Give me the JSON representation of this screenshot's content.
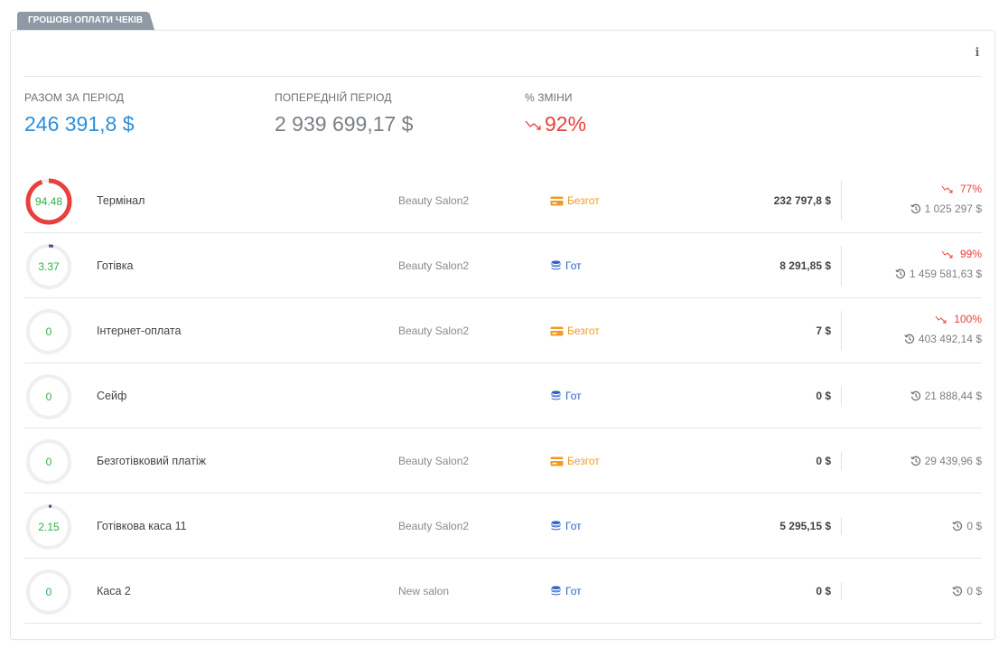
{
  "widget": {
    "tab_title": "ГРОШОВІ ОПЛАТИ ЧЕКІВ",
    "info_icon": "info-icon"
  },
  "summary": {
    "total_label": "РАЗОМ ЗА ПЕРІОД",
    "total_value": "246 391,8 $",
    "prev_label": "ПОПЕРЕДНІЙ ПЕРІОД",
    "prev_value": "2 939 699,17 $",
    "change_label": "% ЗМІНИ",
    "change_value": "92%",
    "change_direction": "down"
  },
  "colors": {
    "accent_blue": "#2e8fd9",
    "negative_red": "#e8403c",
    "donut_value_green": "#2fb04c",
    "cashless_orange": "#f19a24",
    "cash_blue": "#2f63c7",
    "donut_track": "#efefef",
    "donut_fill_red": "#e8403c",
    "donut_fill_navy": "#3f4f8f"
  },
  "rows": [
    {
      "percent": 94.48,
      "percent_label": "94.48",
      "name": "Термінал",
      "salon": "Beauty Salon2",
      "type": "cashless",
      "type_label": "Безгот",
      "amount": "232 797,8 $",
      "change": "77%",
      "prev": "1 025 297 $"
    },
    {
      "percent": 3.37,
      "percent_label": "3.37",
      "name": "Готівка",
      "salon": "Beauty Salon2",
      "type": "cash",
      "type_label": "Гот",
      "amount": "8 291,85 $",
      "change": "99%",
      "prev": "1 459 581,63 $"
    },
    {
      "percent": 0,
      "percent_label": "0",
      "name": "Інтернет-оплата",
      "salon": "Beauty Salon2",
      "type": "cashless",
      "type_label": "Безгот",
      "amount": "7 $",
      "change": "100%",
      "prev": "403 492,14 $"
    },
    {
      "percent": 0,
      "percent_label": "0",
      "name": "Сейф",
      "salon": "",
      "type": "cash",
      "type_label": "Гот",
      "amount": "0 $",
      "change": "",
      "prev": "21 888,44 $"
    },
    {
      "percent": 0,
      "percent_label": "0",
      "name": "Безготівковий платіж",
      "salon": "Beauty Salon2",
      "type": "cashless",
      "type_label": "Безгот",
      "amount": "0 $",
      "change": "",
      "prev": "29 439,96 $"
    },
    {
      "percent": 2.15,
      "percent_label": "2.15",
      "name": "Готівкова каса 11",
      "salon": "Beauty Salon2",
      "type": "cash",
      "type_label": "Гот",
      "amount": "5 295,15 $",
      "change": "",
      "prev": "0 $"
    },
    {
      "percent": 0,
      "percent_label": "0",
      "name": "Каса 2",
      "salon": "New salon",
      "type": "cash",
      "type_label": "Гот",
      "amount": "0 $",
      "change": "",
      "prev": "0 $"
    }
  ]
}
